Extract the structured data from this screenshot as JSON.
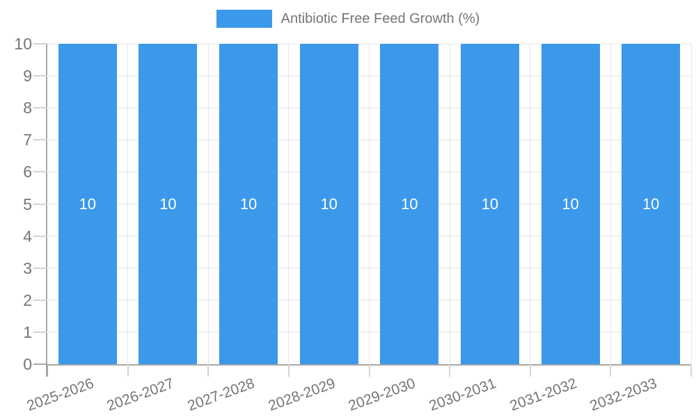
{
  "legend": {
    "label": "Antibiotic Free Feed Growth (%)"
  },
  "colors": {
    "bar": "#3b98eb",
    "grid": "#e6e6e6",
    "axis": "#a6a6a6",
    "tick": "#d4d4d4",
    "text": "#757575",
    "bar_label_text": "#ffffff",
    "background": "#ffffff"
  },
  "chart_data": {
    "type": "bar",
    "title": "",
    "categories": [
      "2025-2026",
      "2026-2027",
      "2027-2028",
      "2028-2029",
      "2029-2030",
      "2030-2031",
      "2031-2032",
      "2032-2033"
    ],
    "series": [
      {
        "name": "Antibiotic Free Feed Growth (%)",
        "values": [
          10,
          10,
          10,
          10,
          10,
          10,
          10,
          10
        ],
        "color": "#3b98eb"
      }
    ],
    "bar_data_labels": [
      "10",
      "10",
      "10",
      "10",
      "10",
      "10",
      "10",
      "10"
    ],
    "xlabel": "",
    "ylabel": "",
    "ylim": [
      0,
      10
    ],
    "ytick_labels": [
      "0",
      "1",
      "2",
      "3",
      "4",
      "5",
      "6",
      "7",
      "8",
      "9",
      "10"
    ],
    "grid": true,
    "legend_position": "top",
    "x_label_rotation_deg": -20
  }
}
